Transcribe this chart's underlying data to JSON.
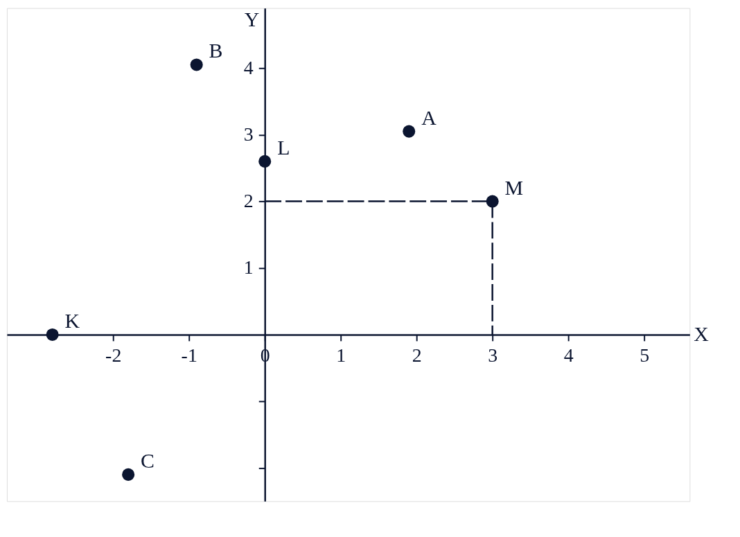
{
  "chart_data": {
    "type": "scatter",
    "xlabel": "X",
    "ylabel": "Y",
    "series": [
      {
        "color": "#0b1530",
        "x": [
          1.9,
          -0.9,
          0,
          3,
          -2.8,
          -1.8
        ],
        "values": [
          3.05,
          4.05,
          2.6,
          2,
          0,
          -2.1
        ]
      },
      {
        "type": "line",
        "color": "#0b1530",
        "line_style": "dashed",
        "marker": "none",
        "x": [
          0,
          3,
          3
        ],
        "values": [
          2,
          2,
          0
        ]
      }
    ],
    "annotations": [
      {
        "text": "A",
        "x": 1.9,
        "y": 3.05
      },
      {
        "text": "B",
        "x": -0.9,
        "y": 4.05
      },
      {
        "text": "L",
        "x": 0,
        "y": 2.6
      },
      {
        "text": "M",
        "x": 3,
        "y": 2
      },
      {
        "text": "K",
        "x": -2.8,
        "y": 0
      },
      {
        "text": "C",
        "x": -1.8,
        "y": -2.1
      }
    ],
    "xlim": [
      -3.4,
      5.6
    ],
    "ylim": [
      -2.5,
      4.9
    ],
    "xticks": [
      -2,
      -1,
      0,
      1,
      2,
      3,
      4,
      5
    ],
    "yticks": [
      {
        "value": -2,
        "label": null
      },
      {
        "value": -1,
        "label": null
      },
      1,
      2,
      3,
      4
    ],
    "marker": "circle",
    "grid": false
  }
}
